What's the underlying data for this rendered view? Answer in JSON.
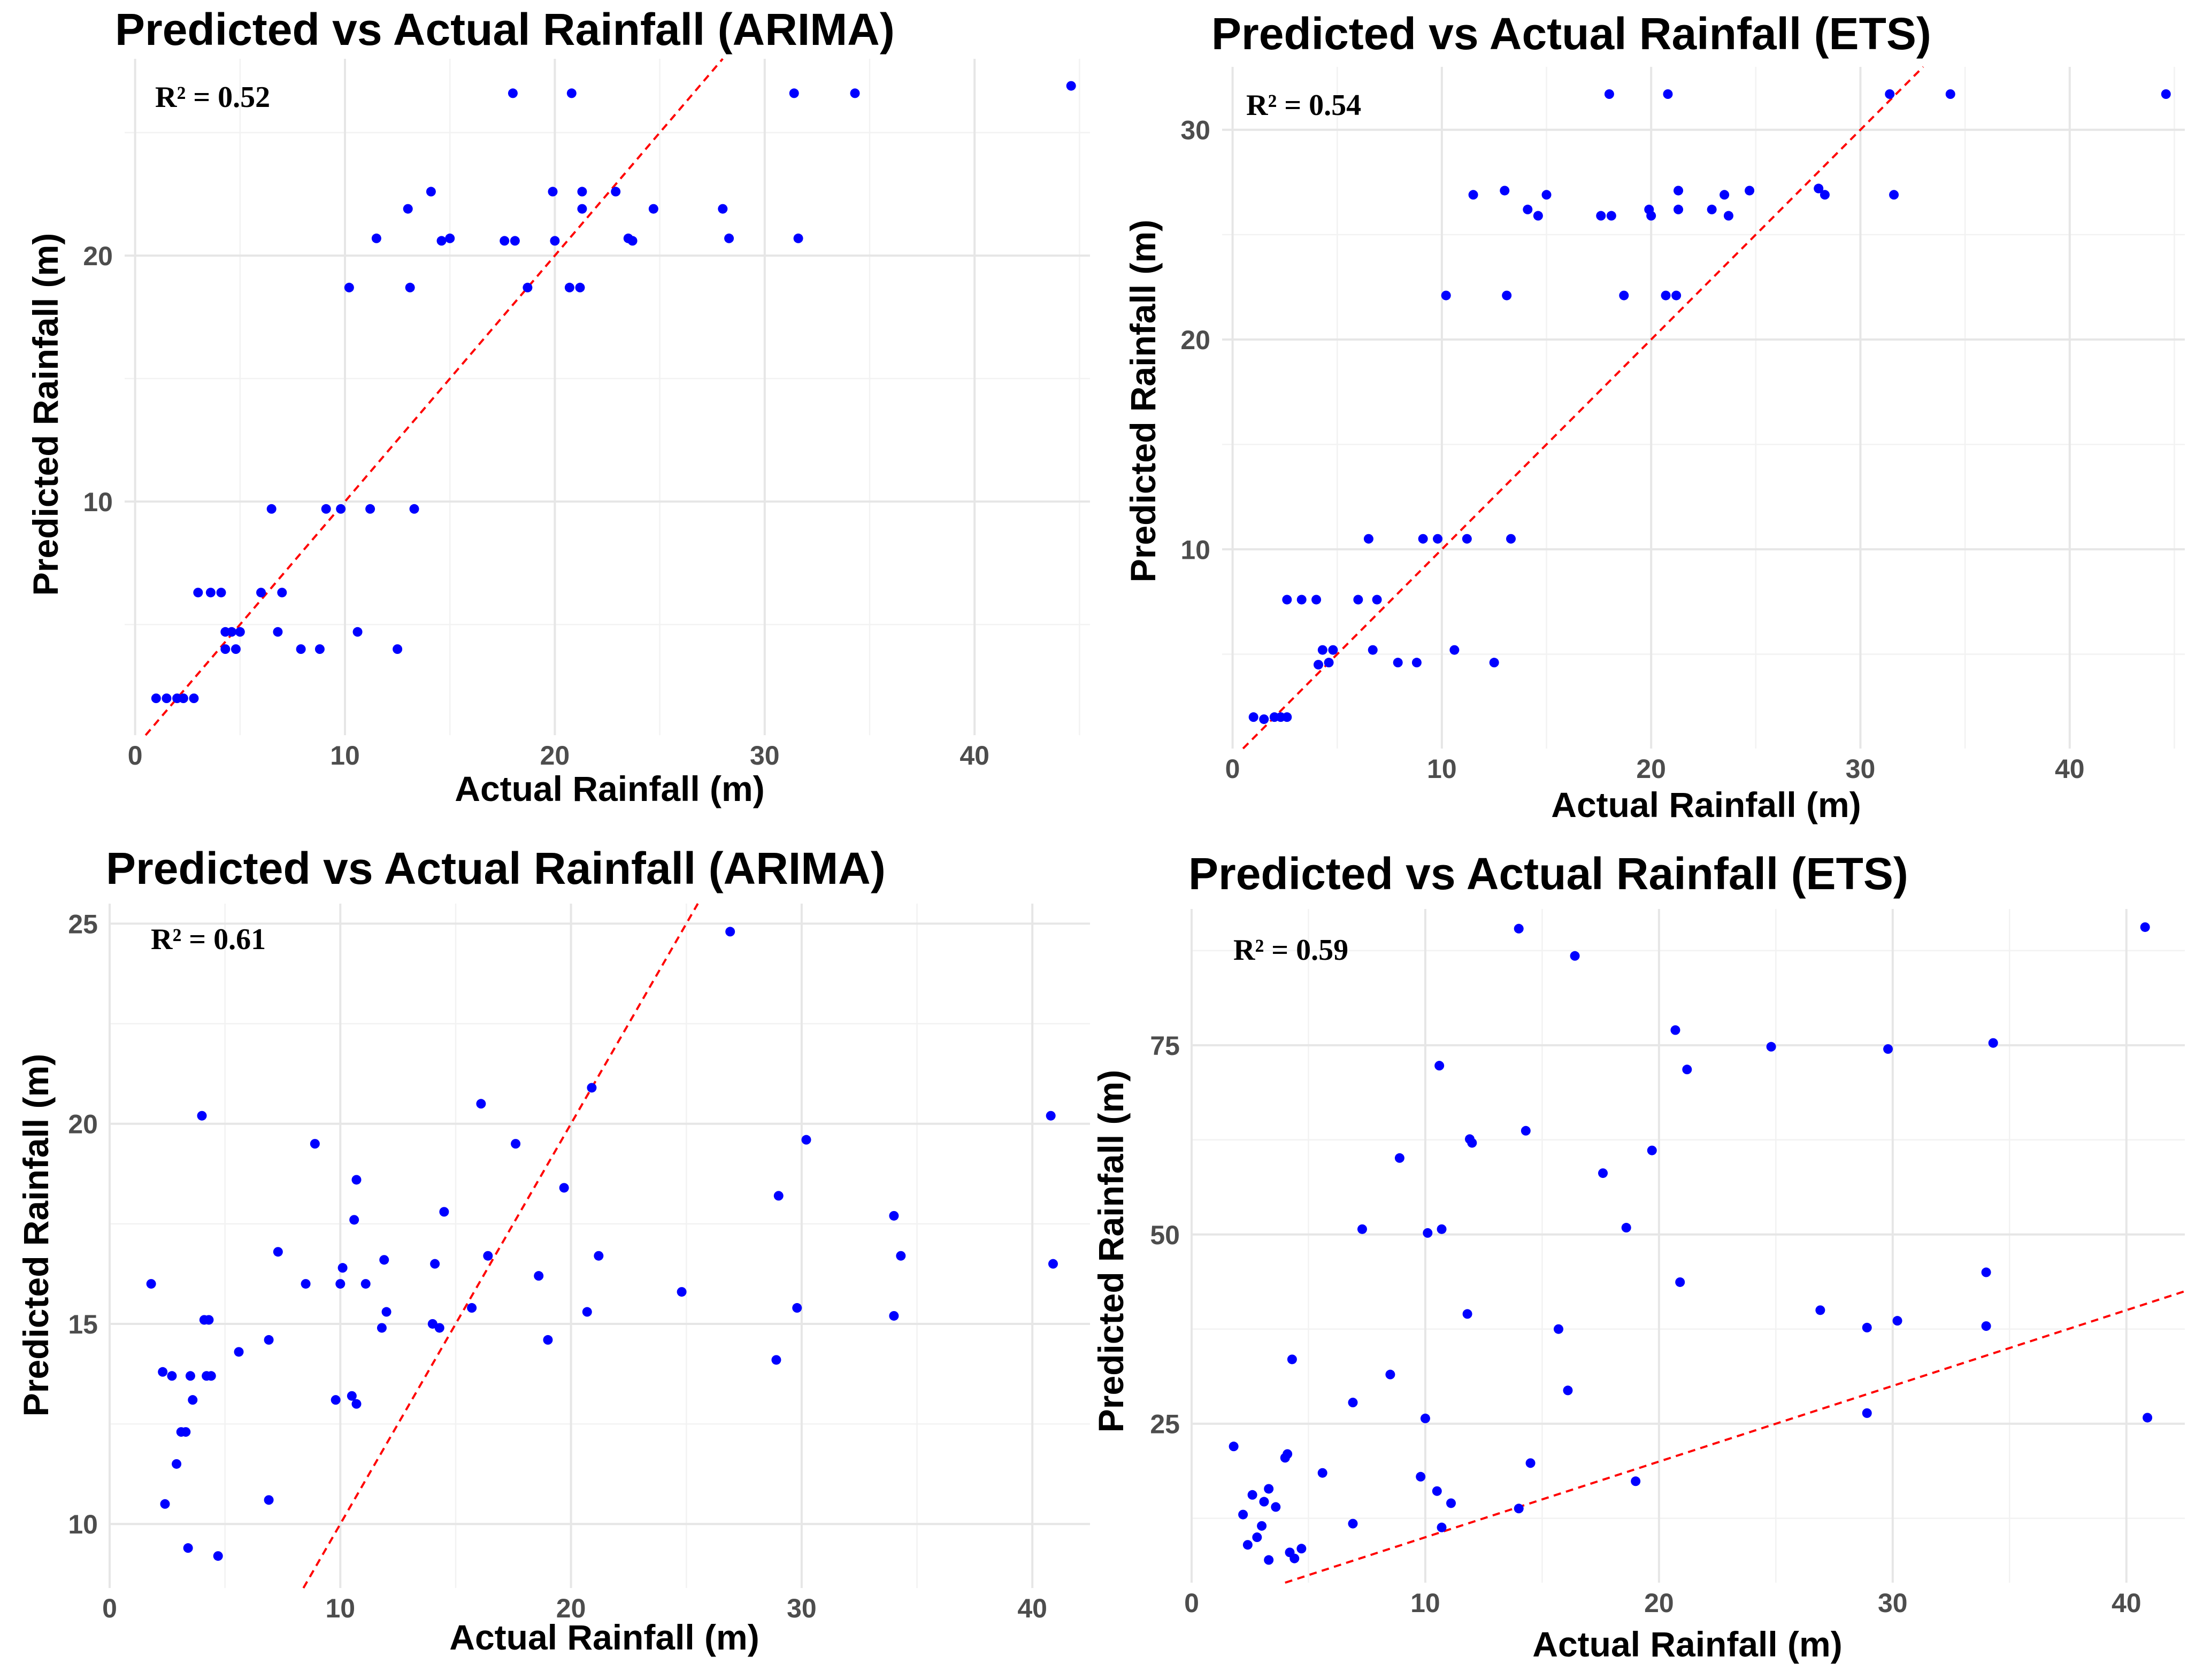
{
  "figure": {
    "background": "#ffffff"
  },
  "chart_data": [
    {
      "type": "scatter",
      "title": "Predicted vs Actual Rainfall (ARIMA)",
      "xlabel": "Actual Rainfall (m)",
      "ylabel": "Predicted Rainfall (m)",
      "annotation": "R² = 0.52",
      "xlim": [
        -0.5,
        45.5
      ],
      "ylim": [
        0.5,
        28
      ],
      "xticks": [
        0,
        10,
        20,
        30,
        40
      ],
      "yticks": [
        10,
        20
      ],
      "grid": true,
      "point_color": "#0000ff",
      "reference_line": {
        "type": "identity",
        "slope": 1,
        "intercept": 0,
        "color": "#ff0000",
        "style": "dashed"
      },
      "points": [
        [
          1,
          2
        ],
        [
          1.5,
          2
        ],
        [
          2,
          2
        ],
        [
          2.3,
          2
        ],
        [
          2.8,
          2
        ],
        [
          3,
          6.3
        ],
        [
          3.6,
          6.3
        ],
        [
          4.1,
          6.3
        ],
        [
          4.3,
          4.7
        ],
        [
          4.6,
          4.7
        ],
        [
          5,
          4.7
        ],
        [
          4.3,
          4
        ],
        [
          4.8,
          4
        ],
        [
          6,
          6.3
        ],
        [
          6.5,
          9.7
        ],
        [
          6.8,
          4.7
        ],
        [
          7,
          6.3
        ],
        [
          7.9,
          4
        ],
        [
          8.8,
          4
        ],
        [
          9.1,
          9.7
        ],
        [
          9.8,
          9.7
        ],
        [
          10.2,
          18.7
        ],
        [
          10.6,
          4.7
        ],
        [
          11.2,
          9.7
        ],
        [
          11.5,
          20.7
        ],
        [
          12.5,
          4
        ],
        [
          13,
          21.9
        ],
        [
          13.1,
          18.7
        ],
        [
          13.3,
          9.7
        ],
        [
          14.1,
          22.6
        ],
        [
          14.6,
          20.6
        ],
        [
          15,
          20.7
        ],
        [
          17.6,
          20.6
        ],
        [
          18,
          26.6
        ],
        [
          18.1,
          20.6
        ],
        [
          18.7,
          18.7
        ],
        [
          19.9,
          22.6
        ],
        [
          20,
          20.6
        ],
        [
          20.7,
          18.7
        ],
        [
          20.8,
          26.6
        ],
        [
          21.2,
          18.7
        ],
        [
          21.3,
          21.9
        ],
        [
          21.3,
          22.6
        ],
        [
          22.9,
          22.6
        ],
        [
          23.5,
          20.7
        ],
        [
          23.7,
          20.6
        ],
        [
          24.7,
          21.9
        ],
        [
          28,
          21.9
        ],
        [
          28.3,
          20.7
        ],
        [
          31.4,
          26.6
        ],
        [
          31.6,
          20.7
        ],
        [
          34.3,
          26.6
        ],
        [
          44.6,
          26.9
        ]
      ]
    },
    {
      "type": "scatter",
      "title": "Predicted vs Actual Rainfall (ETS)",
      "xlabel": "Actual Rainfall (m)",
      "ylabel": "Predicted Rainfall (m)",
      "annotation": "R² = 0.54",
      "xlim": [
        -0.5,
        45.5
      ],
      "ylim": [
        0.5,
        33
      ],
      "xticks": [
        0,
        10,
        20,
        30,
        40
      ],
      "yticks": [
        10,
        20,
        30
      ],
      "grid": true,
      "point_color": "#0000ff",
      "reference_line": {
        "type": "identity",
        "slope": 1,
        "intercept": 0,
        "color": "#ff0000",
        "style": "dashed"
      },
      "points": [
        [
          1,
          2
        ],
        [
          1.5,
          1.9
        ],
        [
          2,
          2
        ],
        [
          2.3,
          2
        ],
        [
          2.6,
          2
        ],
        [
          2.6,
          7.6
        ],
        [
          3.3,
          7.6
        ],
        [
          4,
          7.6
        ],
        [
          4.1,
          4.5
        ],
        [
          4.3,
          5.2
        ],
        [
          4.6,
          4.6
        ],
        [
          4.8,
          5.2
        ],
        [
          6,
          7.6
        ],
        [
          6.5,
          10.5
        ],
        [
          6.7,
          5.2
        ],
        [
          6.9,
          7.6
        ],
        [
          7.9,
          4.6
        ],
        [
          8.8,
          4.6
        ],
        [
          9.1,
          10.5
        ],
        [
          9.8,
          10.5
        ],
        [
          10.2,
          22.1
        ],
        [
          10.6,
          5.2
        ],
        [
          11.2,
          10.5
        ],
        [
          11.5,
          26.9
        ],
        [
          12.5,
          4.6
        ],
        [
          13,
          27.1
        ],
        [
          13.1,
          22.1
        ],
        [
          13.3,
          10.5
        ],
        [
          14.1,
          26.2
        ],
        [
          14.6,
          25.9
        ],
        [
          15,
          26.9
        ],
        [
          17.6,
          25.9
        ],
        [
          18,
          31.7
        ],
        [
          18.1,
          25.9
        ],
        [
          18.7,
          22.1
        ],
        [
          19.9,
          26.2
        ],
        [
          20,
          25.9
        ],
        [
          20.7,
          22.1
        ],
        [
          20.8,
          31.7
        ],
        [
          21.2,
          22.1
        ],
        [
          21.3,
          26.2
        ],
        [
          21.3,
          27.1
        ],
        [
          22.9,
          26.2
        ],
        [
          23.5,
          26.9
        ],
        [
          23.7,
          25.9
        ],
        [
          24.7,
          27.1
        ],
        [
          28,
          27.2
        ],
        [
          28.3,
          26.9
        ],
        [
          31.4,
          31.7
        ],
        [
          31.6,
          26.9
        ],
        [
          34.3,
          31.7
        ],
        [
          44.6,
          31.7
        ]
      ]
    },
    {
      "type": "scatter",
      "title": "Predicted vs Actual Rainfall (ARIMA)",
      "xlabel": "Actual Rainfall (m)",
      "ylabel": "Predicted Rainfall (m)",
      "annotation": "R² = 0.61",
      "xlim": [
        0,
        42.5
      ],
      "ylim": [
        8.4,
        25.5
      ],
      "xticks": [
        0,
        10,
        20,
        30,
        40
      ],
      "yticks": [
        10,
        15,
        20,
        25
      ],
      "grid": true,
      "point_color": "#0000ff",
      "reference_line": {
        "type": "identity",
        "slope": 1,
        "intercept": 0,
        "color": "#ff0000",
        "style": "dashed"
      },
      "points": [
        [
          1.8,
          16
        ],
        [
          2.3,
          13.8
        ],
        [
          2.4,
          10.5
        ],
        [
          2.7,
          13.7
        ],
        [
          2.9,
          11.5
        ],
        [
          3.1,
          12.3
        ],
        [
          3.3,
          12.3
        ],
        [
          3.4,
          9.4
        ],
        [
          3.5,
          13.7
        ],
        [
          3.6,
          13.1
        ],
        [
          4,
          20.2
        ],
        [
          4.1,
          15.1
        ],
        [
          4.2,
          13.7
        ],
        [
          4.3,
          15.1
        ],
        [
          4.4,
          13.7
        ],
        [
          4.7,
          9.2
        ],
        [
          5.6,
          14.3
        ],
        [
          6.9,
          14.6
        ],
        [
          6.9,
          10.6
        ],
        [
          7.3,
          16.8
        ],
        [
          8.5,
          16
        ],
        [
          8.9,
          19.5
        ],
        [
          9.8,
          13.1
        ],
        [
          10,
          16
        ],
        [
          10.1,
          16.4
        ],
        [
          10.5,
          13.2
        ],
        [
          10.6,
          17.6
        ],
        [
          10.7,
          13
        ],
        [
          10.7,
          18.6
        ],
        [
          11.1,
          16
        ],
        [
          11.8,
          14.9
        ],
        [
          11.9,
          16.6
        ],
        [
          12,
          15.3
        ],
        [
          14,
          15
        ],
        [
          14.1,
          16.5
        ],
        [
          14.3,
          14.9
        ],
        [
          14.5,
          17.8
        ],
        [
          15.7,
          15.4
        ],
        [
          16.1,
          20.5
        ],
        [
          16.4,
          16.7
        ],
        [
          17.6,
          19.5
        ],
        [
          18.6,
          16.2
        ],
        [
          19,
          14.6
        ],
        [
          19.7,
          18.4
        ],
        [
          20.7,
          15.3
        ],
        [
          20.9,
          20.9
        ],
        [
          21.2,
          16.7
        ],
        [
          24.8,
          15.8
        ],
        [
          26.9,
          24.8
        ],
        [
          28.9,
          14.1
        ],
        [
          29,
          18.2
        ],
        [
          29.8,
          15.4
        ],
        [
          30.2,
          19.6
        ],
        [
          34,
          15.2
        ],
        [
          34,
          17.7
        ],
        [
          34.3,
          16.7
        ],
        [
          40.8,
          20.2
        ],
        [
          40.9,
          16.5
        ]
      ]
    },
    {
      "type": "scatter",
      "title": "Predicted vs Actual Rainfall (ETS)",
      "xlabel": "Actual Rainfall (m)",
      "ylabel": "Predicted Rainfall (m)",
      "annotation": "R² = 0.59",
      "xlim": [
        0,
        42.5
      ],
      "ylim": [
        4,
        93
      ],
      "xticks": [
        0,
        10,
        20,
        30,
        40
      ],
      "yticks": [
        25,
        50,
        75
      ],
      "grid": true,
      "point_color": "#0000ff",
      "reference_line": {
        "type": "identity",
        "slope": 1,
        "intercept": 0,
        "color": "#ff0000",
        "style": "dashed"
      },
      "points": [
        [
          1.8,
          22
        ],
        [
          2.2,
          13
        ],
        [
          2.4,
          9
        ],
        [
          2.6,
          15.6
        ],
        [
          2.8,
          10
        ],
        [
          3,
          11.5
        ],
        [
          3.1,
          14.7
        ],
        [
          3.3,
          16.4
        ],
        [
          3.3,
          7
        ],
        [
          3.6,
          14
        ],
        [
          4,
          20.5
        ],
        [
          4.1,
          21
        ],
        [
          4.2,
          8
        ],
        [
          4.3,
          33.5
        ],
        [
          4.4,
          7.2
        ],
        [
          4.7,
          8.5
        ],
        [
          5.6,
          18.5
        ],
        [
          6.9,
          27.8
        ],
        [
          6.9,
          11.8
        ],
        [
          7.3,
          50.7
        ],
        [
          8.5,
          31.5
        ],
        [
          8.9,
          60.1
        ],
        [
          9.8,
          18
        ],
        [
          10,
          25.7
        ],
        [
          10.1,
          50.2
        ],
        [
          10.5,
          16.1
        ],
        [
          10.6,
          72.3
        ],
        [
          10.7,
          11.3
        ],
        [
          10.7,
          50.7
        ],
        [
          11.1,
          14.5
        ],
        [
          11.8,
          39.5
        ],
        [
          11.9,
          62.6
        ],
        [
          12,
          62.1
        ],
        [
          14,
          90.4
        ],
        [
          14,
          13.8
        ],
        [
          14.3,
          63.7
        ],
        [
          14.5,
          19.8
        ],
        [
          15.7,
          37.5
        ],
        [
          16.1,
          29.4
        ],
        [
          16.4,
          86.8
        ],
        [
          17.6,
          58.1
        ],
        [
          18.6,
          50.9
        ],
        [
          19,
          17.4
        ],
        [
          19.7,
          61.1
        ],
        [
          20.7,
          77
        ],
        [
          20.9,
          43.7
        ],
        [
          21.2,
          71.8
        ],
        [
          24.8,
          74.8
        ],
        [
          26.9,
          40
        ],
        [
          28.9,
          26.4
        ],
        [
          28.9,
          37.7
        ],
        [
          29.8,
          74.5
        ],
        [
          30.2,
          38.6
        ],
        [
          34,
          45
        ],
        [
          34,
          37.9
        ],
        [
          34.3,
          75.3
        ],
        [
          40.8,
          90.6
        ],
        [
          40.9,
          25.8
        ]
      ]
    }
  ]
}
